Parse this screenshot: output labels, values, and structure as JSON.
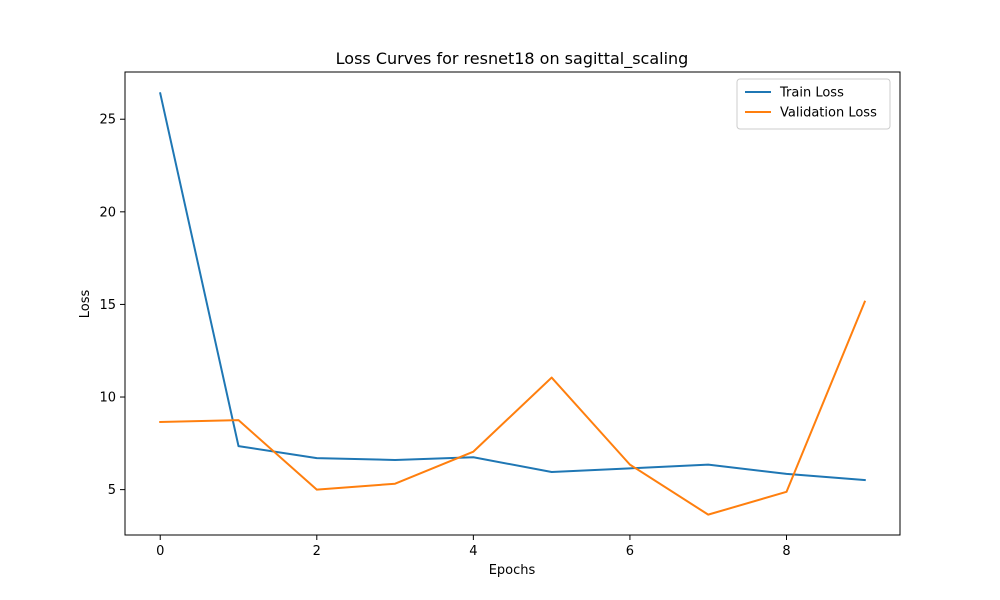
{
  "chart_data": {
    "type": "line",
    "title": "Loss Curves for resnet18 on sagittal_scaling",
    "xlabel": "Epochs",
    "ylabel": "Loss",
    "x": [
      0,
      1,
      2,
      3,
      4,
      5,
      6,
      7,
      8,
      9
    ],
    "xlim": [
      -0.45,
      9.45
    ],
    "ylim": [
      2.55,
      27.55
    ],
    "xticks": [
      0,
      2,
      4,
      6,
      8
    ],
    "yticks": [
      5,
      10,
      15,
      20,
      25
    ],
    "grid": false,
    "legend_position": "upper right",
    "series": [
      {
        "name": "Train Loss",
        "color": "#1f77b4",
        "values": [
          26.4,
          7.35,
          6.7,
          6.6,
          6.75,
          5.95,
          6.15,
          6.35,
          5.85,
          5.52
        ]
      },
      {
        "name": "Validation Loss",
        "color": "#ff7f0e",
        "values": [
          8.65,
          8.75,
          5.0,
          5.32,
          7.05,
          11.05,
          6.35,
          3.65,
          4.88,
          15.15
        ]
      }
    ]
  }
}
